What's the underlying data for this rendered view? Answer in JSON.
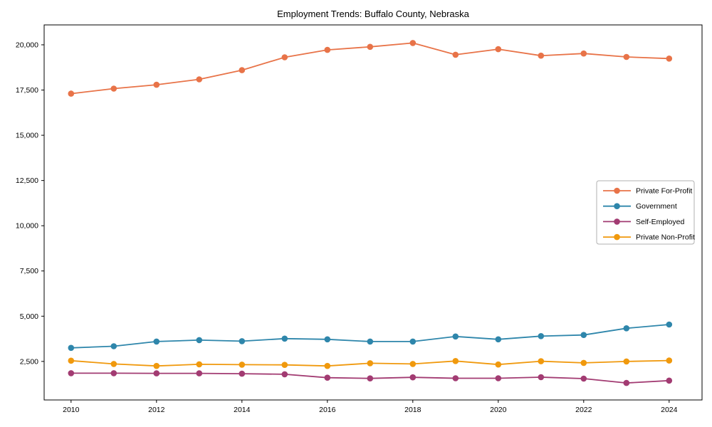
{
  "figure": {
    "background": "#ffffff",
    "spine_color": "#000000",
    "legend_border_color": "#b0b0b0"
  },
  "chart_data": {
    "type": "line",
    "title": "Employment Trends: Buffalo County, Nebraska",
    "xlabel": "",
    "ylabel": "",
    "x": [
      2010,
      2011,
      2012,
      2013,
      2014,
      2015,
      2016,
      2017,
      2018,
      2019,
      2020,
      2021,
      2022,
      2023,
      2024
    ],
    "series": [
      {
        "name": "Private For-Profit",
        "slug": "private-for-profit",
        "color": "#E87348",
        "values": [
          17300,
          17580,
          17790,
          18090,
          18600,
          19310,
          19720,
          19890,
          20100,
          19450,
          19760,
          19400,
          19520,
          19330,
          19240
        ]
      },
      {
        "name": "Government",
        "slug": "government",
        "color": "#2E86AB",
        "values": [
          3250,
          3340,
          3600,
          3680,
          3620,
          3760,
          3720,
          3600,
          3600,
          3880,
          3720,
          3900,
          3960,
          4330,
          4540
        ]
      },
      {
        "name": "Self-Employed",
        "slug": "self-employed",
        "color": "#A23B72",
        "values": [
          1850,
          1850,
          1840,
          1840,
          1820,
          1790,
          1600,
          1560,
          1620,
          1570,
          1570,
          1630,
          1550,
          1310,
          1440
        ]
      },
      {
        "name": "Private Non-Profit",
        "slug": "private-non-profit",
        "color": "#F0990D",
        "values": [
          2540,
          2360,
          2250,
          2340,
          2320,
          2310,
          2250,
          2400,
          2360,
          2520,
          2330,
          2510,
          2420,
          2500,
          2550
        ]
      }
    ],
    "x_ticks": [
      {
        "value": 2010,
        "label": "2010"
      },
      {
        "value": 2012,
        "label": "2012"
      },
      {
        "value": 2014,
        "label": "2014"
      },
      {
        "value": 2016,
        "label": "2016"
      },
      {
        "value": 2018,
        "label": "2018"
      },
      {
        "value": 2020,
        "label": "2020"
      },
      {
        "value": 2022,
        "label": "2022"
      },
      {
        "value": 2024,
        "label": "2024"
      }
    ],
    "y_ticks": [
      {
        "value": 2500,
        "label": "2,500"
      },
      {
        "value": 5000,
        "label": "5,000"
      },
      {
        "value": 7500,
        "label": "7,500"
      },
      {
        "value": 10000,
        "label": "10,000"
      },
      {
        "value": 12500,
        "label": "12,500"
      },
      {
        "value": 15000,
        "label": "15,000"
      },
      {
        "value": 17500,
        "label": "17,500"
      },
      {
        "value": 20000,
        "label": "20,000"
      }
    ],
    "xlim": [
      2009.37,
      2024.77
    ],
    "ylim": [
      370,
      21100
    ],
    "grid": false,
    "legend_position": "center right"
  }
}
